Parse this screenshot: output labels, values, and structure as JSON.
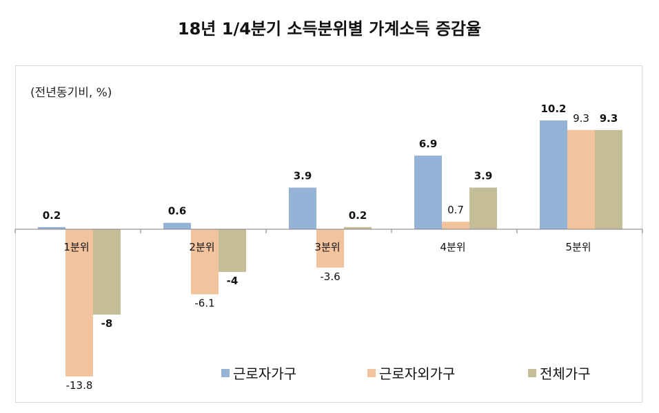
{
  "chart_data": {
    "type": "bar",
    "title": "18년 1/4분기 소득분위별 가계소득 증감율",
    "unit_label": "(전년동기비, %)",
    "categories": [
      "1분위",
      "2분위",
      "3분위",
      "4분위",
      "5분위"
    ],
    "series": [
      {
        "name": "근로자가구",
        "color": "#95b3d7",
        "values": [
          0.2,
          0.6,
          3.9,
          6.9,
          10.2
        ],
        "labels": [
          "0.2",
          "0.6",
          "3.9",
          "6.9",
          "10.2"
        ],
        "label_bold": true
      },
      {
        "name": "근로자외가구",
        "color": "#f2c49e",
        "values": [
          -13.8,
          -6.1,
          -3.6,
          0.7,
          9.3
        ],
        "labels": [
          "-13.8",
          "-6.1",
          "-3.6",
          "0.7",
          "9.3"
        ],
        "label_bold": false
      },
      {
        "name": "전체가구",
        "color": "#c4bd97",
        "values": [
          -8,
          -4,
          0.2,
          3.9,
          9.3
        ],
        "labels": [
          "-8",
          "-4",
          "0.2",
          "3.9",
          "9.3"
        ],
        "label_bold": true
      }
    ],
    "ylim": [
      -15,
      12
    ],
    "grid": false,
    "legend_position": "bottom-right"
  }
}
